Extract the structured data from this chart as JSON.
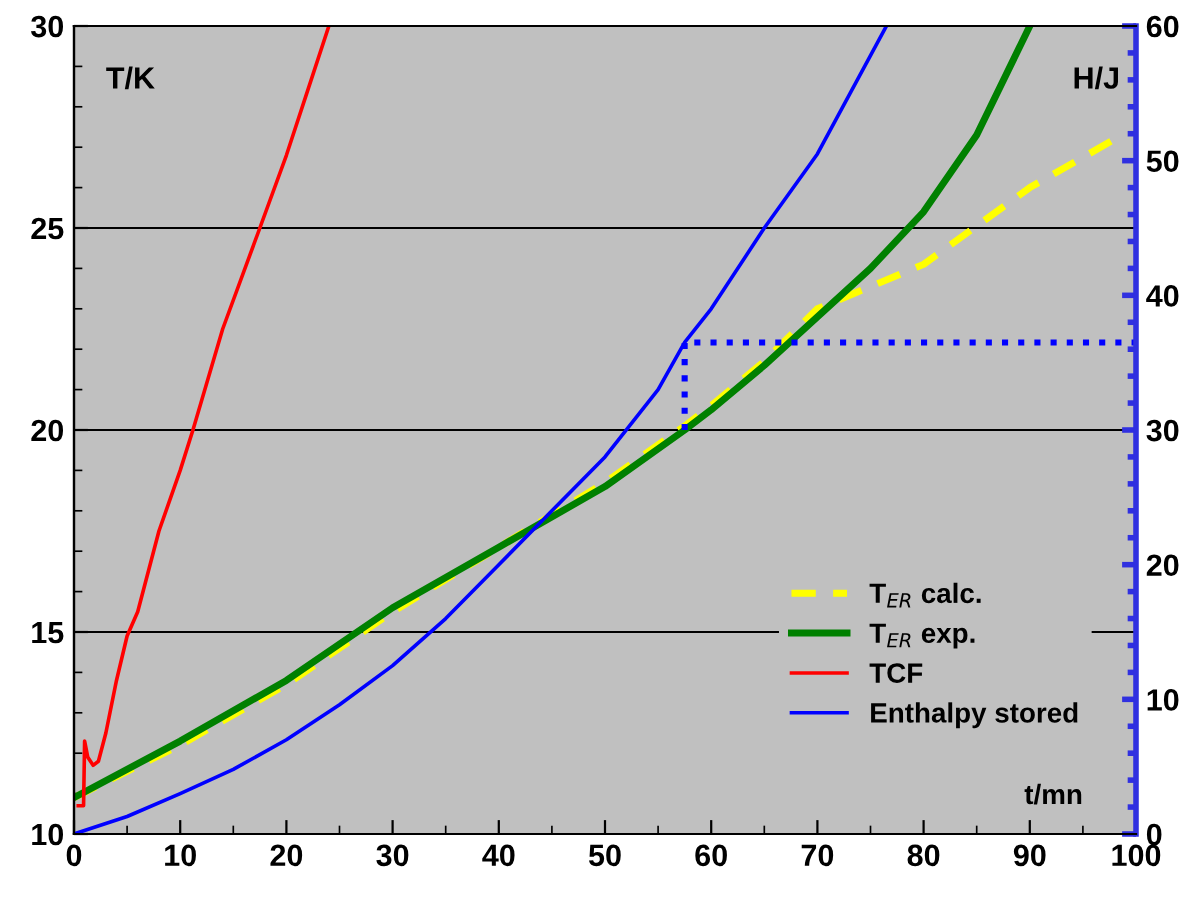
{
  "chart_data": {
    "type": "line",
    "xlabel": "t/mn",
    "ylabel": "T/K",
    "y2label": "H/J",
    "xlim": [
      0,
      100
    ],
    "xticks": [
      0,
      10,
      20,
      30,
      40,
      50,
      60,
      70,
      80,
      90,
      100
    ],
    "ylim": [
      10,
      30
    ],
    "yticks": [
      10,
      15,
      20,
      25,
      30
    ],
    "y2lim": [
      0,
      60
    ],
    "y2ticks": [
      0,
      10,
      20,
      30,
      40,
      50,
      60
    ],
    "grid": "y",
    "legend": "bottom right",
    "marker": "none",
    "series": [
      {
        "name": "T$_{ER}$ calc.",
        "color": "#ffff00",
        "line_style": "dashed",
        "x": [
          0,
          10,
          20,
          30,
          40,
          50,
          57.5,
          60,
          65,
          70,
          80,
          90,
          98
        ],
        "values": [
          10.9,
          12.2,
          13.7,
          15.5,
          17.1,
          18.7,
          20.1,
          20.6,
          21.7,
          23.0,
          24.1,
          26.0,
          27.2
        ]
      },
      {
        "name": "T$_{ER}$ exp.",
        "color": "#008000",
        "line_style": "solid",
        "x": [
          0,
          10,
          20,
          30,
          40,
          50,
          57.5,
          60,
          65,
          70,
          75,
          80,
          85,
          90
        ],
        "values": [
          10.9,
          12.3,
          13.8,
          15.6,
          17.1,
          18.6,
          20.0,
          20.5,
          21.6,
          22.8,
          24.0,
          25.4,
          27.3,
          30.0
        ]
      },
      {
        "name": "TCF",
        "color": "#ff0000",
        "line_style": "solid",
        "x": [
          0.4,
          0.9,
          1.0,
          1.3,
          1.8,
          2.3,
          3,
          4,
          5,
          6,
          8,
          10,
          11.2,
          14,
          17.5,
          20,
          22,
          24
        ],
        "values": [
          10.7,
          10.7,
          12.3,
          11.9,
          11.7,
          11.8,
          12.5,
          13.8,
          14.9,
          15.5,
          17.5,
          19.0,
          20.0,
          22.5,
          25.0,
          26.8,
          28.4,
          30.0
        ]
      },
      {
        "name": "Enthalpy stored",
        "color": "#0000ff",
        "line_style": "solid",
        "axis": "y2",
        "x": [
          0,
          5,
          10,
          15,
          20,
          25,
          30,
          35,
          40,
          45,
          50,
          55,
          57.5,
          60,
          65,
          70,
          76.5
        ],
        "values": [
          0,
          1.3,
          3,
          4.8,
          7,
          9.6,
          12.5,
          16,
          20,
          24,
          28,
          33,
          36.5,
          39,
          45,
          50.5,
          60
        ]
      },
      {
        "color": "#0000ff",
        "line_style": "dotted",
        "axis": "y2",
        "x": [
          57.5,
          57.5,
          100
        ],
        "values": [
          30,
          36.5,
          36.5
        ]
      }
    ]
  }
}
